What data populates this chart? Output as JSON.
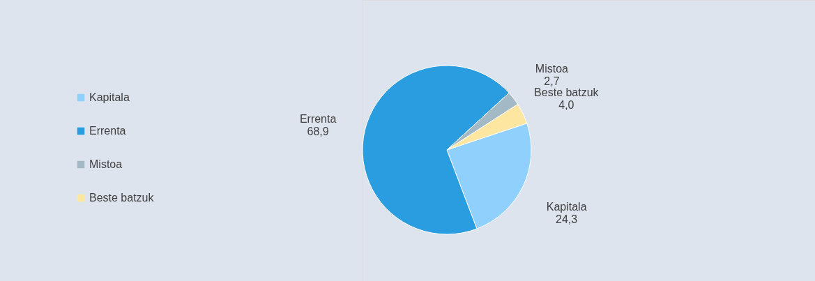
{
  "chart_data": {
    "type": "pie",
    "categories": [
      "Kapitala",
      "Errenta",
      "Mistoa",
      "Beste batzuk"
    ],
    "values": [
      24.3,
      68.9,
      2.7,
      4.0
    ],
    "value_labels": [
      "24,3",
      "68,9",
      "2,7",
      "4,0"
    ],
    "colors": [
      "#8fd0fc",
      "#2a9de0",
      "#a3b9c6",
      "#fde6a0"
    ],
    "legend": "left"
  }
}
